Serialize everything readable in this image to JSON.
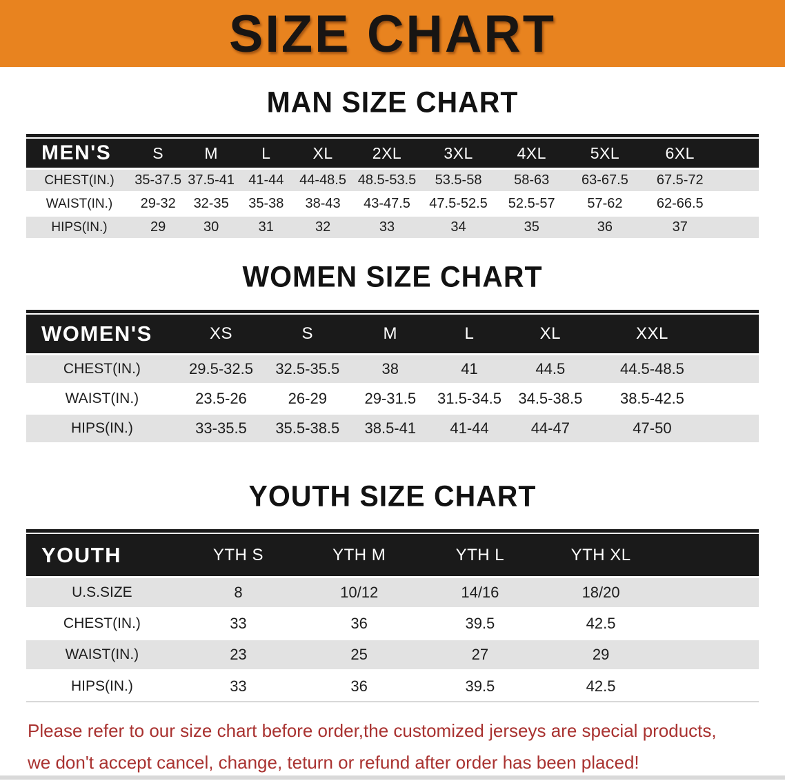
{
  "banner": {
    "title": "SIZE CHART"
  },
  "colors": {
    "banner_orange": "#E8831F",
    "header_black": "#1A1A1A",
    "row_grey": "#E2E2E2",
    "warning_red": "#A93230"
  },
  "sections": [
    {
      "heading": "MAN SIZE CHART",
      "table": {
        "label": "MEN'S",
        "columns": [
          "S",
          "M",
          "L",
          "XL",
          "2XL",
          "3XL",
          "4XL",
          "5XL",
          "6XL"
        ],
        "rows": [
          {
            "label": "CHEST(IN.)",
            "values": [
              "35-37.5",
              "37.5-41",
              "41-44",
              "44-48.5",
              "48.5-53.5",
              "53.5-58",
              "58-63",
              "63-67.5",
              "67.5-72"
            ]
          },
          {
            "label": "WAIST(IN.)",
            "values": [
              "29-32",
              "32-35",
              "35-38",
              "38-43",
              "43-47.5",
              "47.5-52.5",
              "52.5-57",
              "57-62",
              "62-66.5"
            ]
          },
          {
            "label": "HIPS(IN.)",
            "values": [
              "29",
              "30",
              "31",
              "32",
              "33",
              "34",
              "35",
              "36",
              "37"
            ]
          }
        ]
      }
    },
    {
      "heading": "WOMEN SIZE CHART",
      "table": {
        "label": "WOMEN'S",
        "columns": [
          "XS",
          "S",
          "M",
          "L",
          "XL",
          "XXL"
        ],
        "rows": [
          {
            "label": "CHEST(IN.)",
            "values": [
              "29.5-32.5",
              "32.5-35.5",
              "38",
              "41",
              "44.5",
              "44.5-48.5"
            ]
          },
          {
            "label": "WAIST(IN.)",
            "values": [
              "23.5-26",
              "26-29",
              "29-31.5",
              "31.5-34.5",
              "34.5-38.5",
              "38.5-42.5"
            ]
          },
          {
            "label": "HIPS(IN.)",
            "values": [
              "33-35.5",
              "35.5-38.5",
              "38.5-41",
              "41-44",
              "44-47",
              "47-50"
            ]
          }
        ]
      }
    },
    {
      "heading": "YOUTH SIZE CHART",
      "table": {
        "label": "YOUTH",
        "columns": [
          "YTH S",
          "YTH M",
          "YTH L",
          "YTH XL"
        ],
        "rows": [
          {
            "label": "U.S.SIZE",
            "values": [
              "8",
              "10/12",
              "14/16",
              "18/20"
            ]
          },
          {
            "label": "CHEST(IN.)",
            "values": [
              "33",
              "36",
              "39.5",
              "42.5"
            ]
          },
          {
            "label": "WAIST(IN.)",
            "values": [
              "23",
              "25",
              "27",
              "29"
            ]
          },
          {
            "label": "HIPS(IN.)",
            "values": [
              "33",
              "36",
              "39.5",
              "42.5"
            ]
          }
        ]
      }
    }
  ],
  "disclaimer": {
    "lines": [
      "Please refer to our size chart before order,the customized jerseys are special products,",
      "we don't accept cancel, change, teturn or refund after order has been placed!"
    ]
  }
}
